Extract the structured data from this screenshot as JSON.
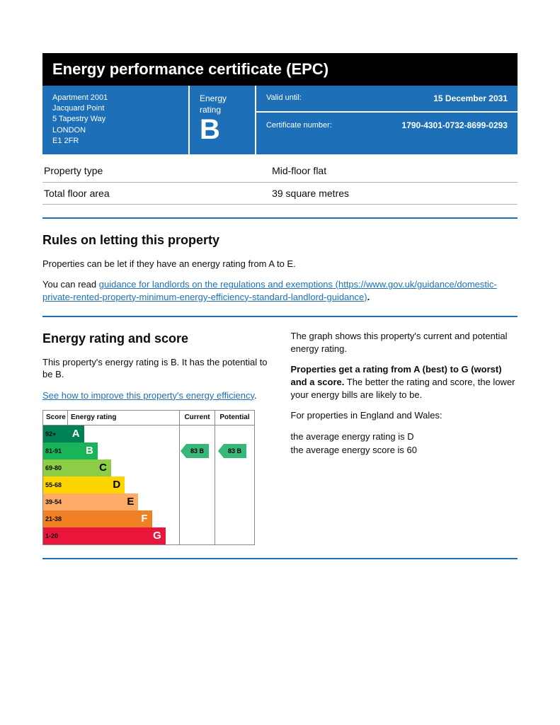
{
  "title": "Energy performance certificate (EPC)",
  "header": {
    "address": [
      "Apartment 2001",
      "Jacquard Point",
      "5 Tapestry Way",
      "LONDON",
      "E1 2FR"
    ],
    "rating_label": "Energy rating",
    "rating_letter": "B",
    "valid_label": "Valid until:",
    "valid_value": "15 December 2031",
    "cert_label": "Certificate number:",
    "cert_value": "1790-4301-0732-8699-0293",
    "blue": "#1d70b8"
  },
  "kv": [
    {
      "label": "Property type",
      "value": "Mid-floor flat"
    },
    {
      "label": "Total floor area",
      "value": "39 square metres"
    }
  ],
  "letting": {
    "heading": "Rules on letting this property",
    "p1": "Properties can be let if they have an energy rating from A to E.",
    "p2_prefix": "You can read ",
    "p2_link_text": "guidance for landlords on the regulations and exemptions (https://www.gov.uk/guidance/domestic-private-rented-property-minimum-energy-efficiency-standard-landlord-guidance)",
    "p2_suffix": "."
  },
  "rating_section": {
    "heading": "Energy rating and score",
    "left_p1": "This property's energy rating is B. It has the potential to be B.",
    "left_link": "See how to improve this property's energy efficiency",
    "left_link_suffix": ".",
    "right_p1": "The graph shows this property's current and potential energy rating.",
    "right_p2_bold": "Properties get a rating from A (best) to G (worst) and a score.",
    "right_p2_rest": " The better the rating and score, the lower your energy bills are likely to be.",
    "right_p3": "For properties in England and Wales:",
    "right_p4a": "the average energy rating is D",
    "right_p4b": "the average energy score is 60"
  },
  "chart": {
    "head_score": "Score",
    "head_rating": "Energy rating",
    "head_current": "Current",
    "head_potential": "Potential",
    "current_tag": "83  B",
    "potential_tag": "83  B",
    "tag_color": "#38b878",
    "bands": [
      {
        "label": "A",
        "score": "92+",
        "color": "#008054",
        "text": "#ffffff",
        "width_pct": 30
      },
      {
        "label": "B",
        "score": "81-91",
        "color": "#19b459",
        "text": "#ffffff",
        "width_pct": 40
      },
      {
        "label": "C",
        "score": "69-80",
        "color": "#8dce46",
        "text": "#000000",
        "width_pct": 50
      },
      {
        "label": "D",
        "score": "55-68",
        "color": "#ffd500",
        "text": "#000000",
        "width_pct": 60
      },
      {
        "label": "E",
        "score": "39-54",
        "color": "#fcaa65",
        "text": "#000000",
        "width_pct": 70
      },
      {
        "label": "F",
        "score": "21-38",
        "color": "#ef8023",
        "text": "#ffffff",
        "width_pct": 80
      },
      {
        "label": "G",
        "score": "1-20",
        "color": "#e9153b",
        "text": "#ffffff",
        "width_pct": 90
      }
    ],
    "tag_band_index": 1
  }
}
